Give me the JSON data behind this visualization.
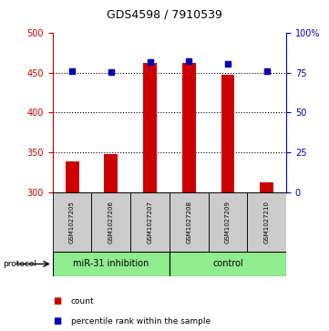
{
  "title": "GDS4598 / 7910539",
  "samples": [
    "GSM1027205",
    "GSM1027206",
    "GSM1027207",
    "GSM1027208",
    "GSM1027209",
    "GSM1027210"
  ],
  "counts": [
    338,
    348,
    462,
    463,
    447,
    312
  ],
  "percentile_ranks": [
    76.0,
    75.5,
    82.0,
    82.5,
    80.5,
    76.0
  ],
  "ylim_left": [
    300,
    500
  ],
  "ylim_right": [
    0,
    100
  ],
  "yticks_left": [
    300,
    350,
    400,
    450,
    500
  ],
  "yticks_right": [
    0,
    25,
    50,
    75,
    100
  ],
  "yticklabels_right": [
    "0",
    "25",
    "50",
    "75",
    "100%"
  ],
  "grid_lines": [
    350,
    400,
    450
  ],
  "bar_color": "#cc0000",
  "dot_color": "#0000bb",
  "protocol_groups": [
    {
      "label": "miR-31 inhibition",
      "samples_range": [
        0,
        3
      ],
      "color": "#90ee90"
    },
    {
      "label": "control",
      "samples_range": [
        3,
        6
      ],
      "color": "#90ee90"
    }
  ],
  "sample_box_color": "#cccccc",
  "legend_items": [
    {
      "color": "#cc0000",
      "label": "count"
    },
    {
      "color": "#0000bb",
      "label": "percentile rank within the sample"
    }
  ],
  "bar_width": 0.35,
  "left_axis_color": "#cc0000",
  "right_axis_color": "#0000bb",
  "fig_bg": "#ffffff",
  "title_fontsize": 9,
  "tick_fontsize": 7,
  "sample_fontsize": 5,
  "protocol_fontsize": 7,
  "legend_fontsize": 6.5
}
